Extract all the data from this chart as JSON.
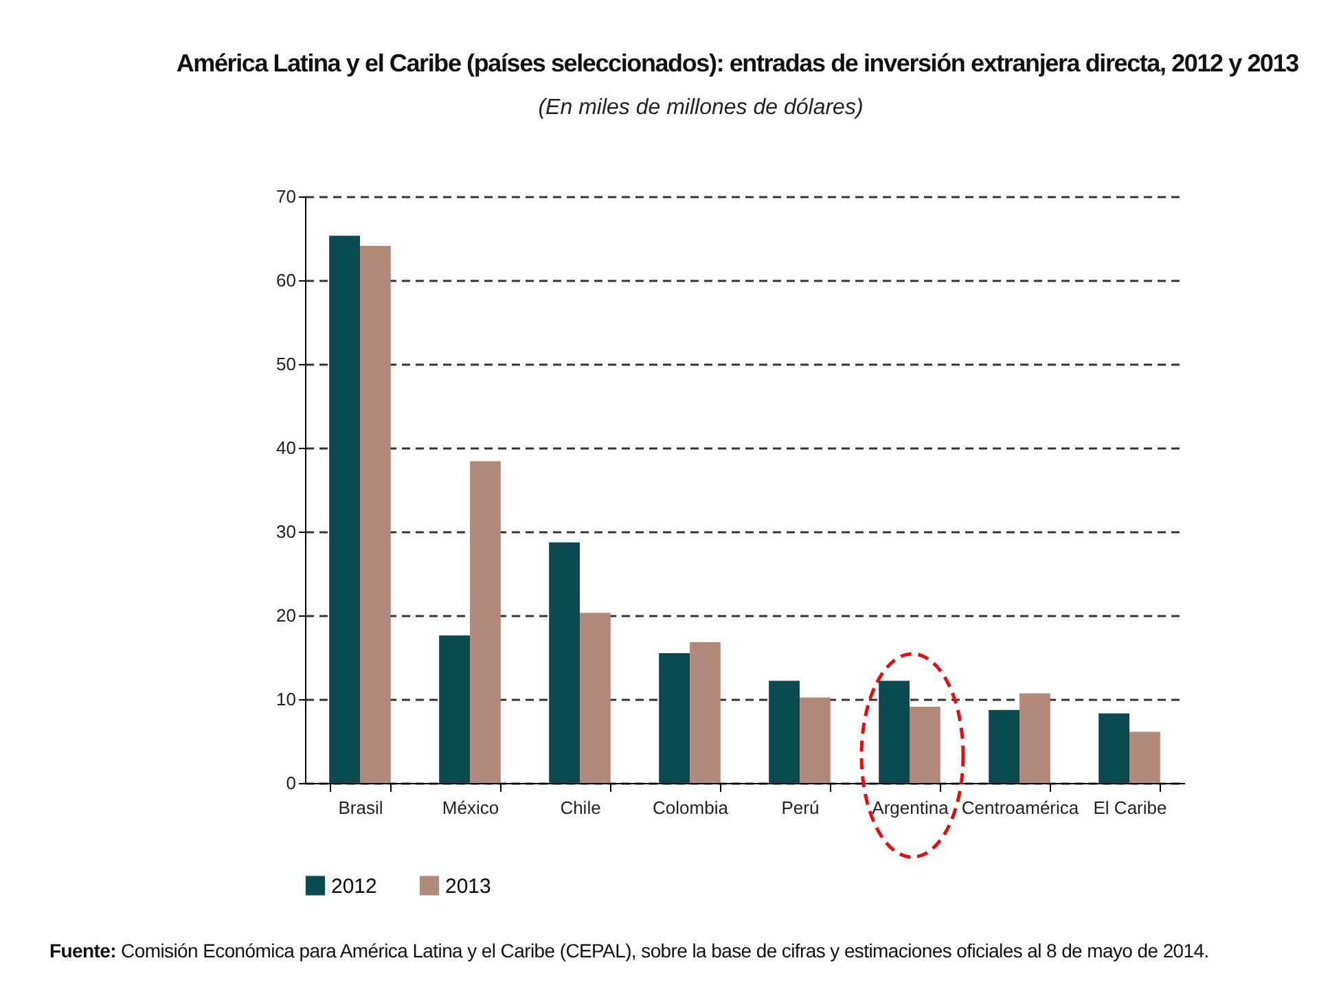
{
  "chart_data": {
    "type": "bar",
    "title": "América Latina y el Caribe (países seleccionados): entradas de inversión extranjera directa, 2012 y 2013",
    "subtitle": "(En miles de millones de dólares)",
    "categories": [
      "Brasil",
      "México",
      "Chile",
      "Colombia",
      "Perú",
      "Argentina",
      "Centroamérica",
      "El Caribe"
    ],
    "series": [
      {
        "name": "2012",
        "color": "#0b4a50",
        "values": [
          65.3,
          17.6,
          28.7,
          15.5,
          12.2,
          12.2,
          8.7,
          8.3
        ]
      },
      {
        "name": "2013",
        "color": "#b38b7a",
        "values": [
          64.1,
          38.4,
          20.3,
          16.8,
          10.2,
          9.1,
          10.7,
          6.1
        ]
      }
    ],
    "ylim": [
      0,
      70
    ],
    "yticks": [
      0,
      10,
      20,
      30,
      40,
      50,
      60,
      70
    ],
    "grid": "y",
    "legend": "bottom",
    "annotations": [
      "Fuente: Comisión Económica para América Latina y el Caribe (CEPAL), sobre la base de cifras y estimaciones oficiales al 8 de mayo de 2014."
    ]
  }
}
